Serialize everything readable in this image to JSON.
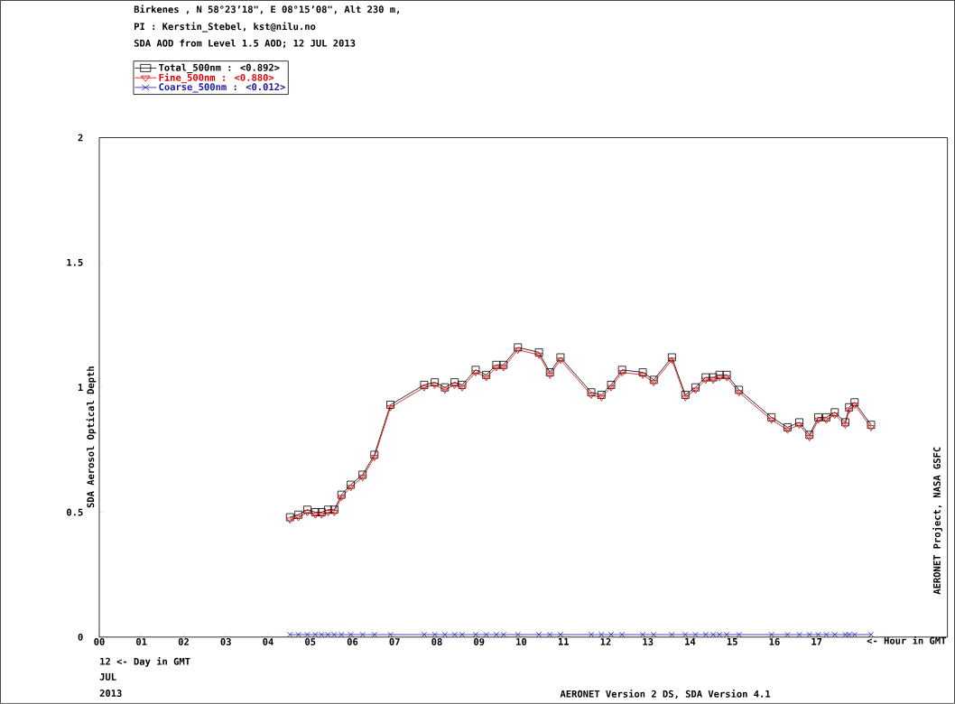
{
  "chart_data": {
    "type": "line",
    "title": "Birkenes , N 58°23’18\", E 08°15’08\", Alt 230 m,",
    "subtitle": "PI : Kerstin_Stebel, kst@nilu.no",
    "xlabel": "<- Hour in GMT",
    "ylabel": "SDA Aerosol Optical Depth",
    "annotations": [
      "SDA AOD from Level 1.5 AOD; 12 JUL 2013",
      "12  <- Day in GMT",
      "JUL",
      "2013",
      "AERONET Version 2 DS, SDA Version 4.1",
      "AERONET Project, NASA GSFC"
    ],
    "x": [
      4.52,
      4.72,
      4.93,
      5.12,
      5.27,
      5.42,
      5.57,
      5.74,
      5.96,
      6.24,
      6.52,
      6.9,
      7.7,
      7.95,
      8.19,
      8.42,
      8.6,
      8.92,
      9.17,
      9.41,
      9.58,
      9.92,
      10.42,
      10.68,
      10.93,
      11.66,
      11.9,
      12.13,
      12.39,
      12.88,
      13.14,
      13.57,
      13.89,
      14.13,
      14.37,
      14.55,
      14.7,
      14.87,
      15.16,
      15.93,
      16.31,
      16.59,
      16.83,
      17.04,
      17.23,
      17.43,
      17.68,
      17.77,
      17.9,
      18.29
    ],
    "series": [
      {
        "name": "Total_500nm  : <0.892>",
        "color": "#000000",
        "marker": "square",
        "values": [
          0.48,
          0.49,
          0.51,
          0.5,
          0.5,
          0.51,
          0.51,
          0.57,
          0.61,
          0.65,
          0.73,
          0.93,
          1.01,
          1.02,
          1.0,
          1.02,
          1.01,
          1.07,
          1.05,
          1.09,
          1.09,
          1.16,
          1.14,
          1.06,
          1.12,
          0.98,
          0.97,
          1.01,
          1.07,
          1.06,
          1.03,
          1.12,
          0.97,
          1.0,
          1.04,
          1.04,
          1.05,
          1.05,
          0.99,
          0.88,
          0.84,
          0.86,
          0.81,
          0.88,
          0.88,
          0.9,
          0.86,
          0.92,
          0.94,
          0.85
        ]
      },
      {
        "name": "Fine_500nm  : <0.880>",
        "color": "#e00000",
        "marker": "triangle",
        "values": [
          0.47,
          0.48,
          0.5,
          0.49,
          0.49,
          0.5,
          0.5,
          0.56,
          0.6,
          0.64,
          0.72,
          0.92,
          1.0,
          1.01,
          0.99,
          1.01,
          1.0,
          1.06,
          1.04,
          1.08,
          1.08,
          1.15,
          1.13,
          1.05,
          1.11,
          0.97,
          0.96,
          1.0,
          1.06,
          1.05,
          1.02,
          1.11,
          0.96,
          0.99,
          1.03,
          1.03,
          1.04,
          1.04,
          0.98,
          0.87,
          0.83,
          0.85,
          0.8,
          0.87,
          0.87,
          0.89,
          0.85,
          0.91,
          0.93,
          0.84
        ]
      },
      {
        "name": "Coarse_500nm  : <0.012>",
        "color": "#1a1aa0",
        "marker": "cross",
        "values": [
          0.01,
          0.01,
          0.01,
          0.01,
          0.01,
          0.01,
          0.01,
          0.01,
          0.01,
          0.01,
          0.01,
          0.01,
          0.01,
          0.01,
          0.01,
          0.01,
          0.01,
          0.01,
          0.01,
          0.01,
          0.01,
          0.01,
          0.01,
          0.01,
          0.01,
          0.01,
          0.01,
          0.01,
          0.01,
          0.01,
          0.01,
          0.01,
          0.01,
          0.01,
          0.01,
          0.01,
          0.01,
          0.01,
          0.01,
          0.01,
          0.01,
          0.01,
          0.01,
          0.01,
          0.01,
          0.01,
          0.01,
          0.01,
          0.01,
          0.01
        ]
      }
    ],
    "xlim": [
      0,
      20.1
    ],
    "ylim": [
      0,
      2
    ],
    "xticks": [
      {
        "value": 0,
        "label": "00"
      },
      {
        "value": 1,
        "label": "01"
      },
      {
        "value": 2,
        "label": "02"
      },
      {
        "value": 3,
        "label": "03"
      },
      {
        "value": 4,
        "label": "04"
      },
      {
        "value": 5,
        "label": "05"
      },
      {
        "value": 6,
        "label": "06"
      },
      {
        "value": 7,
        "label": "07"
      },
      {
        "value": 8,
        "label": "08"
      },
      {
        "value": 9,
        "label": "09"
      },
      {
        "value": 10,
        "label": "10"
      },
      {
        "value": 11,
        "label": "11"
      },
      {
        "value": 12,
        "label": "12"
      },
      {
        "value": 13,
        "label": "13"
      },
      {
        "value": 14,
        "label": "14"
      },
      {
        "value": 15,
        "label": "15"
      },
      {
        "value": 16,
        "label": "16"
      },
      {
        "value": 17,
        "label": "17"
      }
    ],
    "yticks": [
      0,
      0.5,
      1,
      1.5,
      2
    ],
    "grid": false,
    "legend": "top left"
  }
}
